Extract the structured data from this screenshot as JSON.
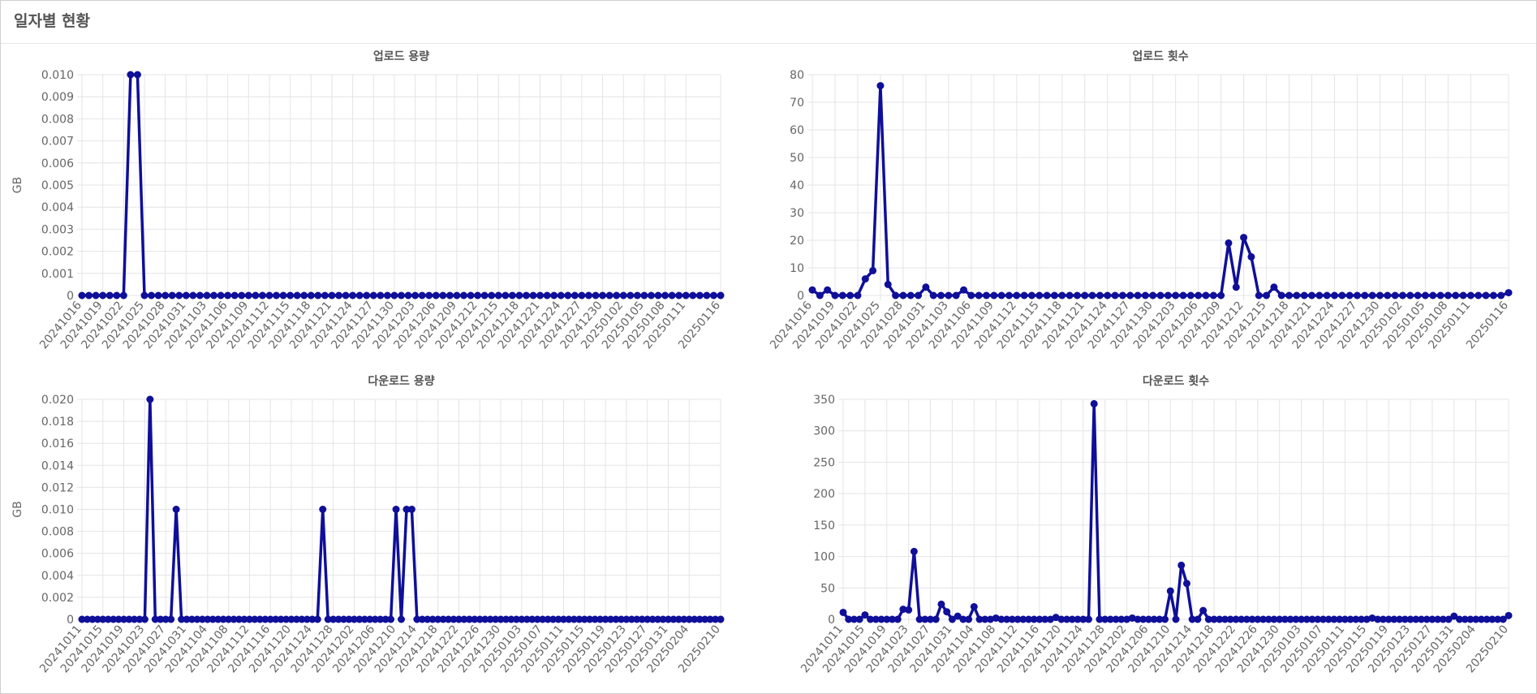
{
  "header": {
    "title": "일자별 현황"
  },
  "chart_data": [
    {
      "type": "line",
      "title": "업로드 용량",
      "y_label": "GB",
      "color": "#0f0f99",
      "categories": [
        "20241016",
        null,
        null,
        "20241019",
        null,
        null,
        "20241022",
        null,
        null,
        "20241025",
        null,
        null,
        "20241028",
        null,
        null,
        "20241031",
        null,
        null,
        "20241103",
        null,
        null,
        "20241106",
        null,
        null,
        "20241109",
        null,
        null,
        "20241112",
        null,
        null,
        "20241115",
        null,
        null,
        "20241118",
        null,
        null,
        "20241121",
        null,
        null,
        "20241124",
        null,
        null,
        "20241127",
        null,
        null,
        "20241130",
        null,
        null,
        "20241203",
        null,
        null,
        "20241206",
        null,
        null,
        "20241209",
        null,
        null,
        "20241212",
        null,
        null,
        "20241215",
        null,
        null,
        "20241218",
        null,
        null,
        "20241221",
        null,
        null,
        "20241224",
        null,
        null,
        "20241227",
        null,
        null,
        "20241230",
        null,
        null,
        "20250102",
        null,
        null,
        "20250105",
        null,
        null,
        "20250108",
        null,
        null,
        "20250111",
        null,
        null,
        null,
        null,
        "20250116"
      ],
      "values": [
        0,
        0,
        0,
        0,
        0,
        0,
        0,
        0.01,
        0.01,
        0,
        0,
        0,
        0,
        0,
        0,
        0,
        0,
        0,
        0,
        0,
        0,
        0,
        0,
        0,
        0,
        0,
        0,
        0,
        0,
        0,
        0,
        0,
        0,
        0,
        0,
        0,
        0,
        0,
        0,
        0,
        0,
        0,
        0,
        0,
        0,
        0,
        0,
        0,
        0,
        0,
        0,
        0,
        0,
        0,
        0,
        0,
        0,
        0,
        0,
        0,
        0,
        0,
        0,
        0,
        0,
        0,
        0,
        0,
        0,
        0,
        0,
        0,
        0,
        0,
        0,
        0,
        0,
        0,
        0,
        0,
        0,
        0,
        0,
        0,
        0,
        0,
        0,
        0,
        0,
        0,
        0,
        0,
        0
      ],
      "ylim": [
        0,
        0.01
      ],
      "yticks": [
        0,
        0.001,
        0.002,
        0.003,
        0.004,
        0.005,
        0.006,
        0.007,
        0.008,
        0.009,
        {
          "value": 0.01,
          "label": "0.010"
        }
      ],
      "grid": true
    },
    {
      "type": "line",
      "title": "업로드 횟수",
      "color": "#0f0f99",
      "categories": [
        "20241016",
        null,
        null,
        "20241019",
        null,
        null,
        "20241022",
        null,
        null,
        "20241025",
        null,
        null,
        "20241028",
        null,
        null,
        "20241031",
        null,
        null,
        "20241103",
        null,
        null,
        "20241106",
        null,
        null,
        "20241109",
        null,
        null,
        "20241112",
        null,
        null,
        "20241115",
        null,
        null,
        "20241118",
        null,
        null,
        "20241121",
        null,
        null,
        "20241124",
        null,
        null,
        "20241127",
        null,
        null,
        "20241130",
        null,
        null,
        "20241203",
        null,
        null,
        "20241206",
        null,
        null,
        "20241209",
        null,
        null,
        "20241212",
        null,
        null,
        "20241215",
        null,
        null,
        "20241218",
        null,
        null,
        "20241221",
        null,
        null,
        "20241224",
        null,
        null,
        "20241227",
        null,
        null,
        "20241230",
        null,
        null,
        "20250102",
        null,
        null,
        "20250105",
        null,
        null,
        "20250108",
        null,
        null,
        "20250111",
        null,
        null,
        null,
        null,
        "20250116"
      ],
      "values": [
        2,
        0,
        2,
        0,
        0,
        0,
        0,
        6,
        9,
        76,
        4,
        0,
        0,
        0,
        0,
        3,
        0,
        0,
        0,
        0,
        2,
        0,
        0,
        0,
        0,
        0,
        0,
        0,
        0,
        0,
        0,
        0,
        0,
        0,
        0,
        0,
        0,
        0,
        0,
        0,
        0,
        0,
        0,
        0,
        0,
        0,
        0,
        0,
        0,
        0,
        0,
        0,
        0,
        0,
        0,
        19,
        3,
        21,
        14,
        0,
        0,
        3,
        0,
        0,
        0,
        0,
        0,
        0,
        0,
        0,
        0,
        0,
        0,
        0,
        0,
        0,
        0,
        0,
        0,
        0,
        0,
        0,
        0,
        0,
        0,
        0,
        0,
        0,
        0,
        0,
        0,
        0,
        1
      ],
      "ylim": [
        0,
        80
      ],
      "yticks": [
        0,
        10,
        20,
        30,
        40,
        50,
        60,
        70,
        80
      ],
      "grid": true
    },
    {
      "type": "line",
      "title": "다운로드 용량",
      "y_label": "GB",
      "color": "#0f0f99",
      "categories": [
        "20241011",
        null,
        null,
        null,
        "20241015",
        null,
        null,
        null,
        "20241019",
        null,
        null,
        null,
        "20241023",
        null,
        null,
        null,
        "20241027",
        null,
        null,
        null,
        "20241031",
        null,
        null,
        null,
        "20241104",
        null,
        null,
        null,
        "20241108",
        null,
        null,
        null,
        "20241112",
        null,
        null,
        null,
        "20241116",
        null,
        null,
        null,
        "20241120",
        null,
        null,
        null,
        "20241124",
        null,
        null,
        null,
        "20241128",
        null,
        null,
        null,
        "20241202",
        null,
        null,
        null,
        "20241206",
        null,
        null,
        null,
        "20241210",
        null,
        null,
        null,
        "20241214",
        null,
        null,
        null,
        "20241218",
        null,
        null,
        null,
        "20241222",
        null,
        null,
        null,
        "20241226",
        null,
        null,
        null,
        "20241230",
        null,
        null,
        null,
        "20250103",
        null,
        null,
        null,
        "20250107",
        null,
        null,
        null,
        "20250111",
        null,
        null,
        null,
        "20250115",
        null,
        null,
        null,
        "20250119",
        null,
        null,
        null,
        "20250123",
        null,
        null,
        null,
        "20250127",
        null,
        null,
        null,
        "20250131",
        null,
        null,
        null,
        "20250204",
        null,
        null,
        null,
        null,
        null,
        "20250210"
      ],
      "values": [
        0,
        0,
        0,
        0,
        0,
        0,
        0,
        0,
        0,
        0,
        0,
        0,
        0,
        0.02,
        0,
        0,
        0,
        0,
        0.01,
        0,
        0,
        0,
        0,
        0,
        0,
        0,
        0,
        0,
        0,
        0,
        0,
        0,
        0,
        0,
        0,
        0,
        0,
        0,
        0,
        0,
        0,
        0,
        0,
        0,
        0,
        0,
        0.01,
        0,
        0,
        0,
        0,
        0,
        0,
        0,
        0,
        0,
        0,
        0,
        0,
        0,
        0.01,
        0,
        0.01,
        0.01,
        0,
        0,
        0,
        0,
        0,
        0,
        0,
        0,
        0,
        0,
        0,
        0,
        0,
        0,
        0,
        0,
        0,
        0,
        0,
        0,
        0,
        0,
        0,
        0,
        0,
        0,
        0,
        0,
        0,
        0,
        0,
        0,
        0,
        0,
        0,
        0,
        0,
        0,
        0,
        0,
        0,
        0,
        0,
        0,
        0,
        0,
        0,
        0,
        0,
        0,
        0,
        0,
        0,
        0,
        0,
        0,
        0,
        0,
        0
      ],
      "ylim": [
        0,
        0.02
      ],
      "yticks": [
        0,
        0.002,
        0.004,
        0.006,
        0.008,
        {
          "value": 0.01,
          "label": "0.010"
        },
        0.012,
        0.014,
        0.016,
        0.018,
        {
          "value": 0.02,
          "label": "0.020"
        }
      ],
      "grid": true
    },
    {
      "type": "line",
      "title": "다운로드 횟수",
      "color": "#0f0f99",
      "categories": [
        "20241011",
        null,
        null,
        null,
        "20241015",
        null,
        null,
        null,
        "20241019",
        null,
        null,
        null,
        "20241023",
        null,
        null,
        null,
        "20241027",
        null,
        null,
        null,
        "20241031",
        null,
        null,
        null,
        "20241104",
        null,
        null,
        null,
        "20241108",
        null,
        null,
        null,
        "20241112",
        null,
        null,
        null,
        "20241116",
        null,
        null,
        null,
        "20241120",
        null,
        null,
        null,
        "20241124",
        null,
        null,
        null,
        "20241128",
        null,
        null,
        null,
        "20241202",
        null,
        null,
        null,
        "20241206",
        null,
        null,
        null,
        "20241210",
        null,
        null,
        null,
        "20241214",
        null,
        null,
        null,
        "20241218",
        null,
        null,
        null,
        "20241222",
        null,
        null,
        null,
        "20241226",
        null,
        null,
        null,
        "20241230",
        null,
        null,
        null,
        "20250103",
        null,
        null,
        null,
        "20250107",
        null,
        null,
        null,
        "20250111",
        null,
        null,
        null,
        "20250115",
        null,
        null,
        null,
        "20250119",
        null,
        null,
        null,
        "20250123",
        null,
        null,
        null,
        "20250127",
        null,
        null,
        null,
        "20250131",
        null,
        null,
        null,
        "20250204",
        null,
        null,
        null,
        null,
        null,
        "20250210"
      ],
      "values": [
        11,
        0,
        0,
        0,
        7,
        0,
        0,
        0,
        0,
        0,
        0,
        16,
        15,
        108,
        0,
        0,
        0,
        0,
        24,
        12,
        0,
        5,
        0,
        0,
        20,
        0,
        0,
        0,
        2,
        0,
        0,
        0,
        0,
        0,
        0,
        0,
        0,
        0,
        0,
        3,
        0,
        0,
        0,
        0,
        0,
        0,
        343,
        0,
        0,
        0,
        0,
        0,
        0,
        2,
        0,
        0,
        0,
        0,
        0,
        0,
        45,
        0,
        86,
        57,
        0,
        0,
        14,
        0,
        0,
        0,
        0,
        0,
        0,
        0,
        0,
        0,
        0,
        0,
        0,
        0,
        0,
        0,
        0,
        0,
        0,
        0,
        0,
        0,
        0,
        0,
        0,
        0,
        0,
        0,
        0,
        0,
        0,
        2,
        0,
        0,
        0,
        0,
        0,
        0,
        0,
        0,
        0,
        0,
        0,
        0,
        0,
        0,
        5,
        0,
        0,
        0,
        0,
        0,
        0,
        0,
        0,
        0,
        6
      ],
      "ylim": [
        0,
        350
      ],
      "yticks": [
        0,
        50,
        100,
        150,
        200,
        250,
        300,
        350
      ],
      "grid": true
    }
  ]
}
